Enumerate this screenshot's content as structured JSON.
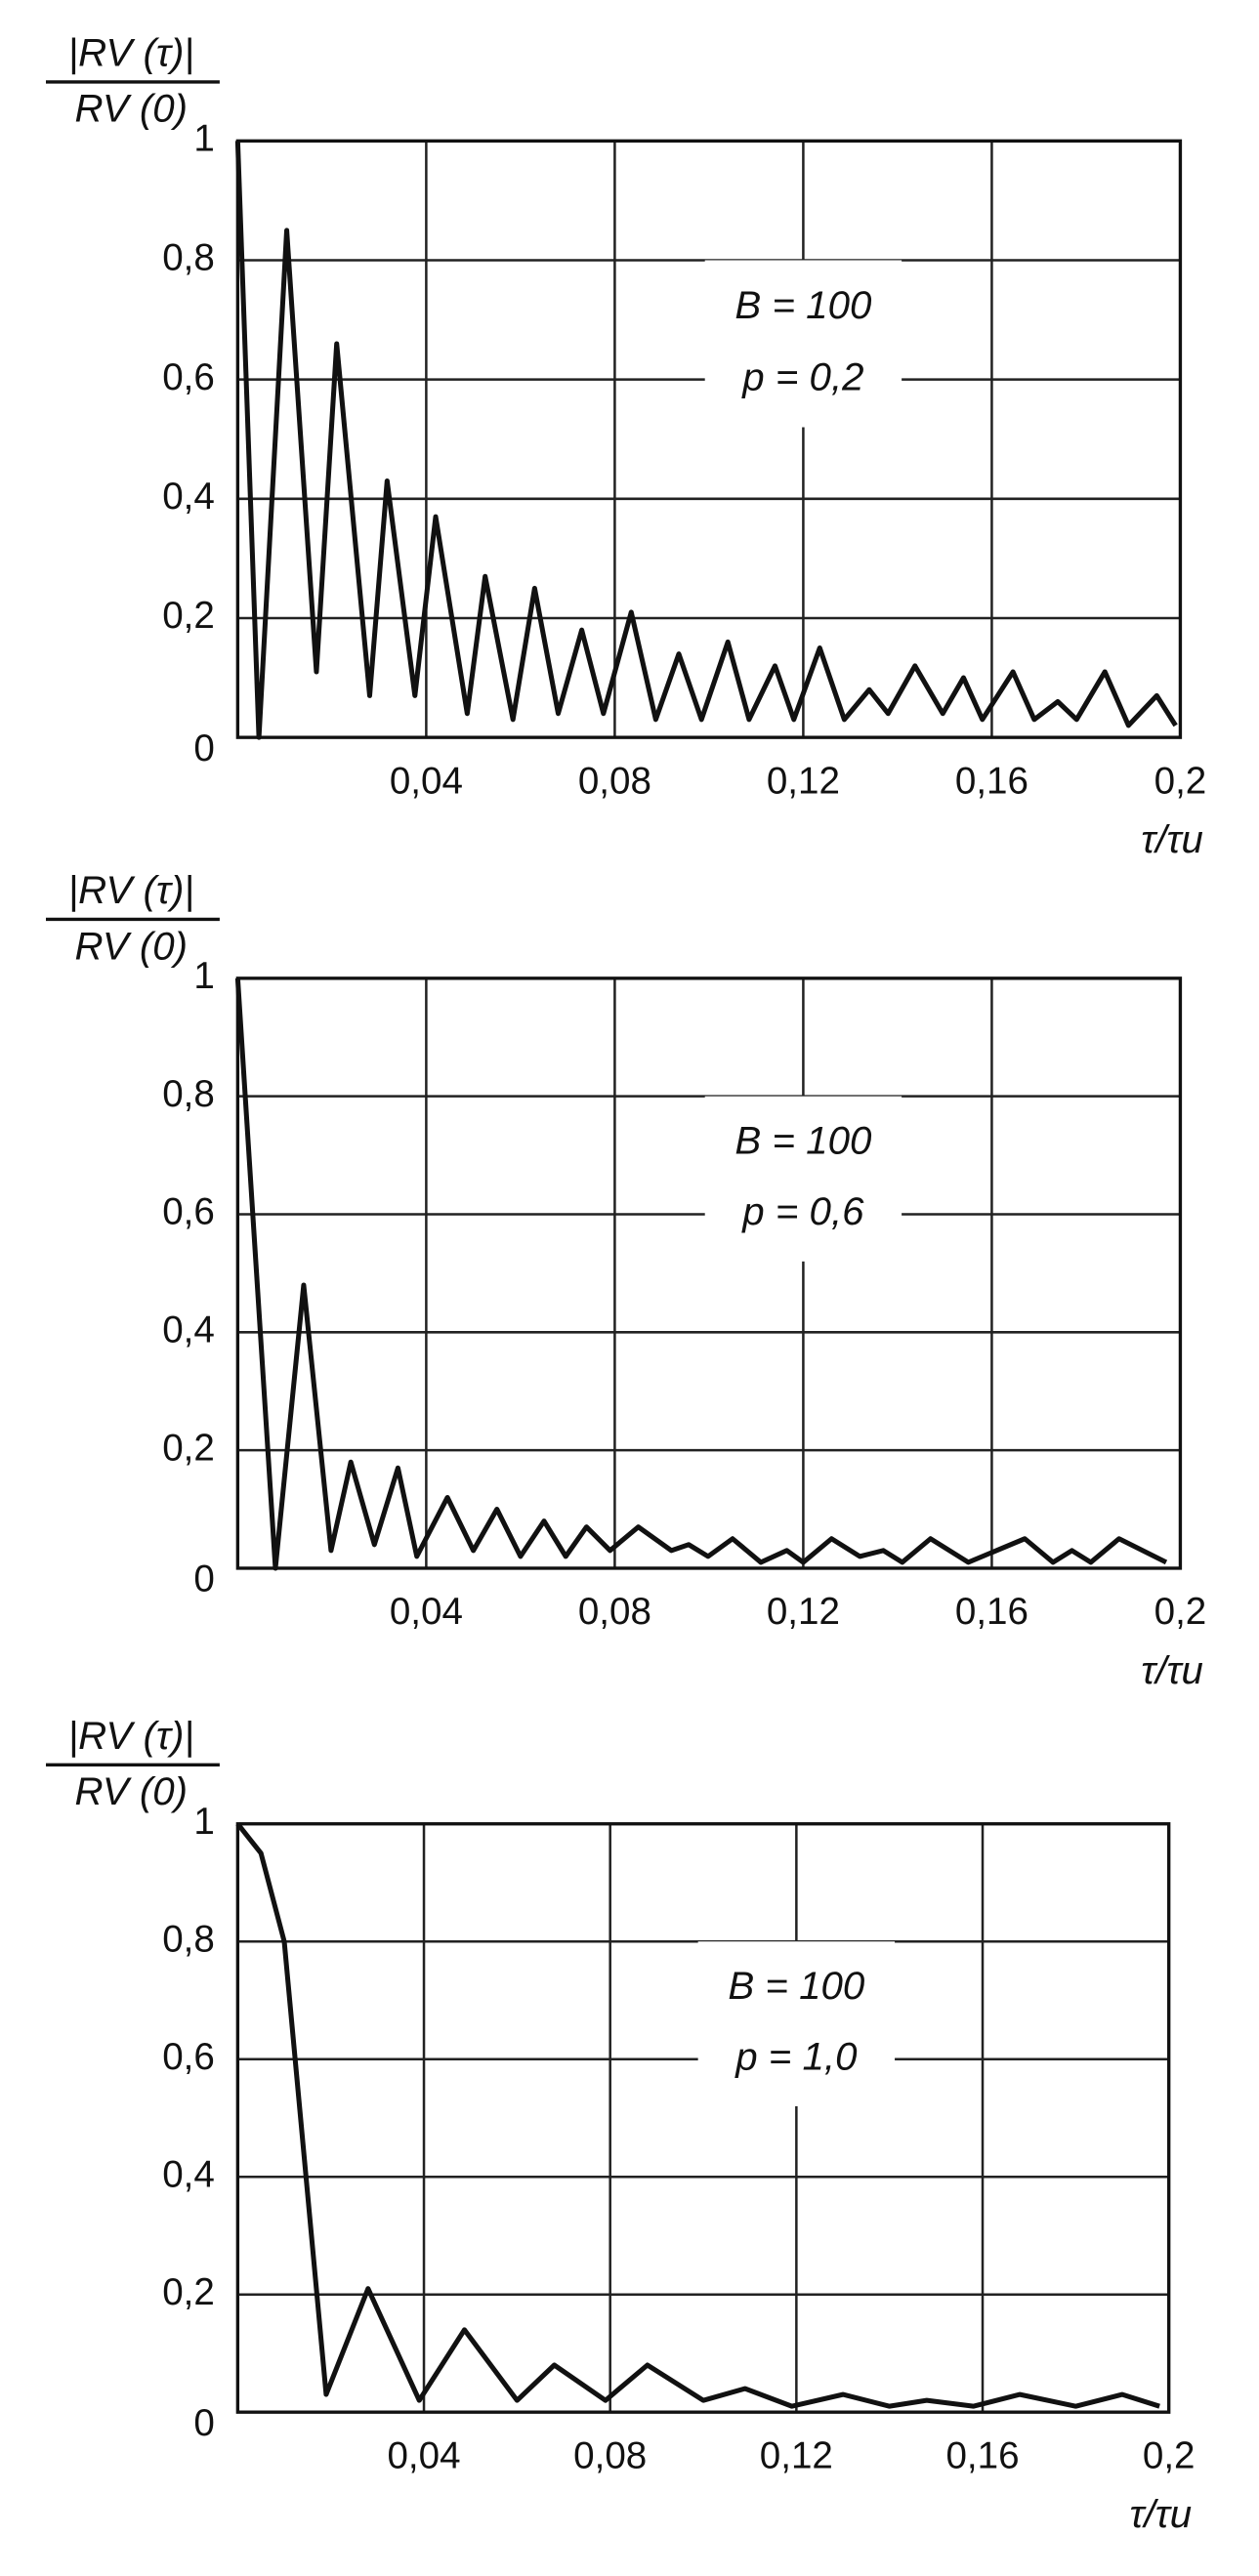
{
  "chart_data": [
    {
      "type": "line",
      "y_label_numerator": "|RV (τ)|",
      "y_label_denominator": "RV (0)",
      "x_label": "τ/τu",
      "annotations": [
        "B = 100",
        "p = 0,2"
      ],
      "xlim": [
        0,
        0.2
      ],
      "ylim": [
        0,
        1
      ],
      "xticks": [
        {
          "value": 0.04,
          "label": "0,04"
        },
        {
          "value": 0.08,
          "label": "0,08"
        },
        {
          "value": 0.12,
          "label": "0,12"
        },
        {
          "value": 0.16,
          "label": "0,16"
        },
        {
          "value": 0.2,
          "label": "0,2"
        }
      ],
      "yticks": [
        0,
        {
          "value": 0.2,
          "label": "0,2"
        },
        {
          "value": 0.4,
          "label": "0,4"
        },
        {
          "value": 0.6,
          "label": "0,6"
        },
        {
          "value": 0.8,
          "label": "0,8"
        },
        1
      ],
      "grid": true,
      "series": [
        {
          "color": "#111111",
          "x": [
            0,
            0.0045,
            0.0104,
            0.0167,
            0.021,
            0.028,
            0.0317,
            0.0376,
            0.042,
            0.0487,
            0.0525,
            0.0584,
            0.063,
            0.068,
            0.073,
            0.0776,
            0.0835,
            0.0887,
            0.0936,
            0.0984,
            0.104,
            0.1085,
            0.114,
            0.118,
            0.1235,
            0.1287,
            0.134,
            0.138,
            0.1437,
            0.1496,
            0.154,
            0.158,
            0.1645,
            0.169,
            0.174,
            0.178,
            0.184,
            0.189,
            0.195,
            0.199
          ],
          "values": [
            1,
            0,
            0.85,
            0.11,
            0.66,
            0.07,
            0.43,
            0.07,
            0.37,
            0.04,
            0.27,
            0.03,
            0.25,
            0.04,
            0.18,
            0.04,
            0.21,
            0.03,
            0.14,
            0.03,
            0.16,
            0.03,
            0.12,
            0.03,
            0.15,
            0.03,
            0.08,
            0.04,
            0.12,
            0.04,
            0.1,
            0.03,
            0.11,
            0.03,
            0.06,
            0.03,
            0.11,
            0.02,
            0.07,
            0.02
          ]
        }
      ]
    },
    {
      "type": "line",
      "y_label_numerator": "|RV (τ)|",
      "y_label_denominator": "RV (0)",
      "x_label": "τ/τu",
      "annotations": [
        "B = 100",
        "p = 0,6"
      ],
      "xlim": [
        0,
        0.2
      ],
      "ylim": [
        0,
        1
      ],
      "xticks": [
        {
          "value": 0.04,
          "label": "0,04"
        },
        {
          "value": 0.08,
          "label": "0,08"
        },
        {
          "value": 0.12,
          "label": "0,12"
        },
        {
          "value": 0.16,
          "label": "0,16"
        },
        {
          "value": 0.2,
          "label": "0,2"
        }
      ],
      "yticks": [
        0,
        {
          "value": 0.2,
          "label": "0,2"
        },
        {
          "value": 0.4,
          "label": "0,4"
        },
        {
          "value": 0.6,
          "label": "0,6"
        },
        {
          "value": 0.8,
          "label": "0,8"
        },
        1
      ],
      "grid": true,
      "series": [
        {
          "color": "#111111",
          "x": [
            0,
            0.008,
            0.014,
            0.0198,
            0.024,
            0.029,
            0.034,
            0.038,
            0.0445,
            0.05,
            0.055,
            0.06,
            0.065,
            0.0696,
            0.074,
            0.079,
            0.085,
            0.092,
            0.0957,
            0.0998,
            0.105,
            0.111,
            0.1165,
            0.12,
            0.126,
            0.132,
            0.137,
            0.141,
            0.147,
            0.155,
            0.167,
            0.173,
            0.177,
            0.181,
            0.187,
            0.197
          ],
          "values": [
            1,
            0,
            0.48,
            0.03,
            0.18,
            0.04,
            0.17,
            0.02,
            0.12,
            0.03,
            0.1,
            0.02,
            0.08,
            0.02,
            0.07,
            0.03,
            0.07,
            0.03,
            0.04,
            0.02,
            0.05,
            0.01,
            0.03,
            0.01,
            0.05,
            0.02,
            0.03,
            0.01,
            0.05,
            0.01,
            0.05,
            0.01,
            0.03,
            0.01,
            0.05,
            0.01
          ]
        }
      ]
    },
    {
      "type": "line",
      "y_label_numerator": "|RV (τ)|",
      "y_label_denominator": "RV (0)",
      "x_label": "τ/τu",
      "annotations": [
        "B = 100",
        "p = 1,0"
      ],
      "xlim": [
        0,
        0.2
      ],
      "ylim": [
        0,
        1
      ],
      "xticks": [
        {
          "value": 0.04,
          "label": "0,04"
        },
        {
          "value": 0.08,
          "label": "0,08"
        },
        {
          "value": 0.12,
          "label": "0,12"
        },
        {
          "value": 0.16,
          "label": "0,16"
        },
        {
          "value": 0.2,
          "label": "0,2"
        }
      ],
      "yticks": [
        0,
        {
          "value": 0.2,
          "label": "0,2"
        },
        {
          "value": 0.4,
          "label": "0,4"
        },
        {
          "value": 0.6,
          "label": "0,6"
        },
        {
          "value": 0.8,
          "label": "0,8"
        },
        1
      ],
      "grid": true,
      "series": [
        {
          "color": "#111111",
          "x": [
            0,
            0.005,
            0.01,
            0.019,
            0.028,
            0.039,
            0.0487,
            0.06,
            0.068,
            0.079,
            0.088,
            0.1,
            0.109,
            0.119,
            0.13,
            0.14,
            0.148,
            0.158,
            0.168,
            0.18,
            0.19,
            0.198
          ],
          "values": [
            1,
            0.95,
            0.8,
            0.03,
            0.21,
            0.02,
            0.14,
            0.02,
            0.08,
            0.02,
            0.08,
            0.02,
            0.04,
            0.01,
            0.03,
            0.01,
            0.02,
            0.01,
            0.03,
            0.01,
            0.03,
            0.01
          ]
        }
      ]
    }
  ]
}
